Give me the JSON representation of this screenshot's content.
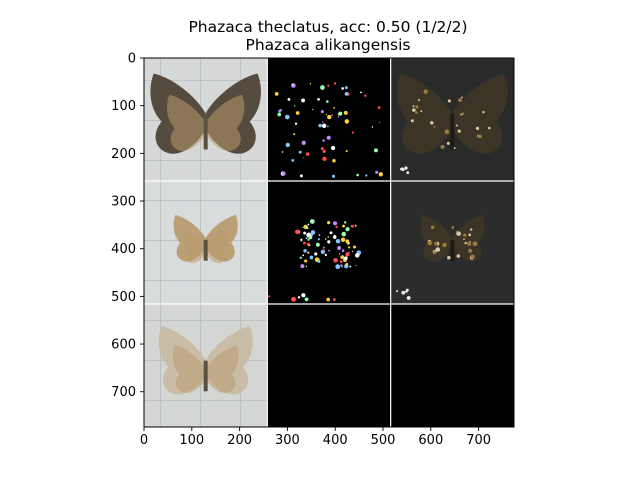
{
  "figure": {
    "title_line1": "Phazaca theclatus, acc: 0.50 (1/2/2)",
    "title_line2": "Phazaca alikangensis"
  },
  "chart_data": {
    "type": "image-grid",
    "title": "Phazaca theclatus, acc: 0.50 (1/2/2)\nPhazaca alikangensis",
    "xlabel": "",
    "ylabel": "",
    "xlim": [
      0,
      774
    ],
    "ylim": [
      774,
      0
    ],
    "grid": false,
    "x_ticks": [
      0,
      100,
      200,
      300,
      400,
      500,
      600,
      700
    ],
    "y_ticks": [
      0,
      100,
      200,
      300,
      400,
      500,
      600,
      700
    ],
    "tile_size": 258,
    "rows": 3,
    "cols": 3,
    "tiles": [
      {
        "row": 0,
        "col": 0,
        "content": "moth-photo",
        "background": "#d6d9d7"
      },
      {
        "row": 0,
        "col": 1,
        "content": "saliency-map",
        "background": "#000000"
      },
      {
        "row": 0,
        "col": 2,
        "content": "masked-moth",
        "background": "#2a2a2a"
      },
      {
        "row": 1,
        "col": 0,
        "content": "moth-photo",
        "background": "#d9dcdc"
      },
      {
        "row": 1,
        "col": 1,
        "content": "saliency-map",
        "background": "#000000"
      },
      {
        "row": 1,
        "col": 2,
        "content": "masked-moth",
        "background": "#2c2c2c"
      },
      {
        "row": 2,
        "col": 0,
        "content": "moth-photo",
        "background": "#d4d6d3"
      },
      {
        "row": 2,
        "col": 1,
        "content": "empty",
        "background": "#000000"
      },
      {
        "row": 2,
        "col": 2,
        "content": "empty",
        "background": "#000000"
      }
    ]
  },
  "colors": {
    "moth_dark": "#4a4032",
    "moth_wing_tan": "#b89a6e",
    "moth_pale": "#c8bba3",
    "grid_line": "#ffffff",
    "photo_grid": "#a9b0b3"
  }
}
